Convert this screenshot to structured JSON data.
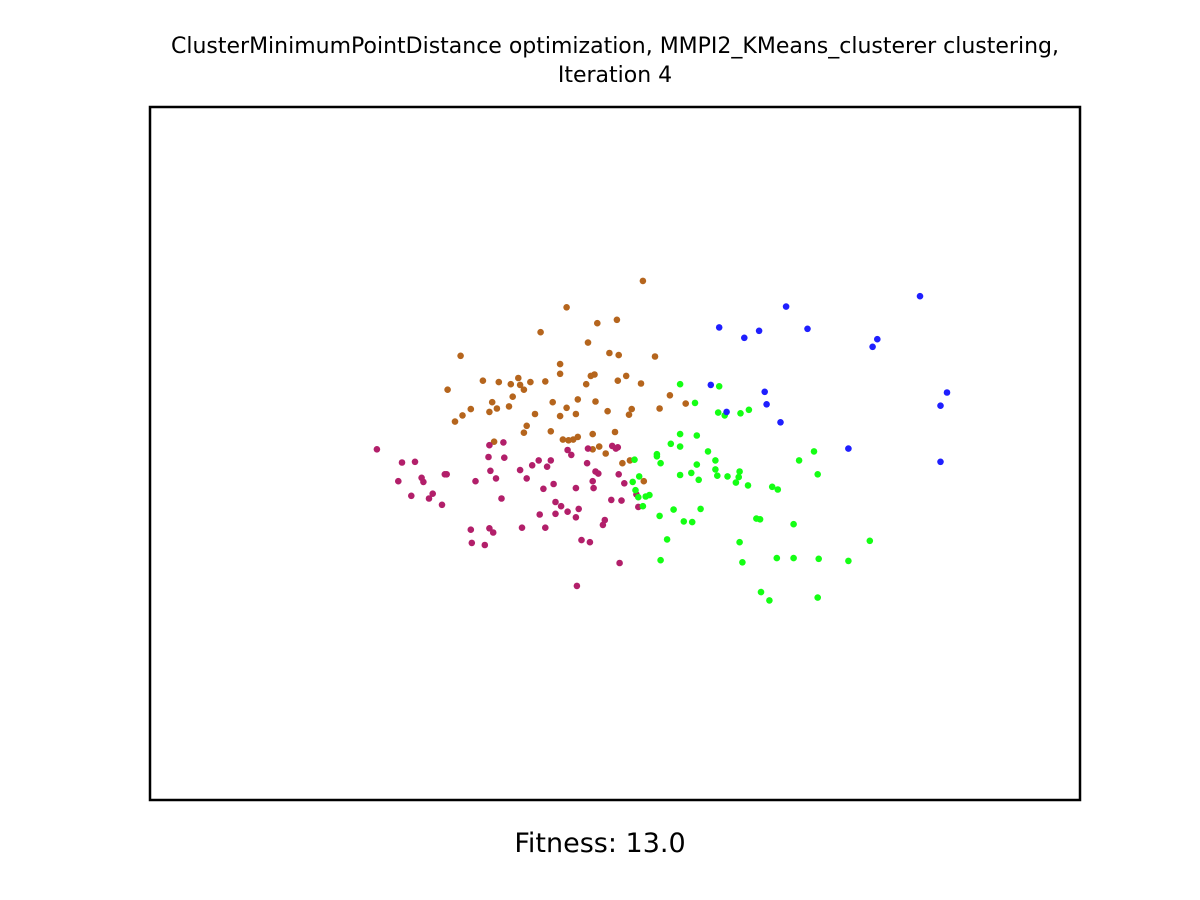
{
  "title_line1": "ClusterMinimumPointDistance optimization, MMPI2_KMeans_clusterer clustering,",
  "title_line2": "Iteration 4",
  "xlabel": "Fitness: 13.0",
  "chart_data": {
    "type": "scatter",
    "title": "ClusterMinimumPointDistance optimization, MMPI2_KMeans_clusterer clustering, Iteration 4",
    "xlabel": "Fitness: 13.0",
    "ylabel": "",
    "axes_ticks": false,
    "grid": false,
    "legend": false,
    "xlim": [
      0,
      1
    ],
    "ylim": [
      0,
      1
    ],
    "series": [
      {
        "color": "#b5651d",
        "points": [
          [
            0.448,
            0.711
          ],
          [
            0.53,
            0.749
          ],
          [
            0.502,
            0.693
          ],
          [
            0.336,
            0.555
          ],
          [
            0.334,
            0.641
          ],
          [
            0.32,
            0.592
          ],
          [
            0.42,
            0.675
          ],
          [
            0.478,
            0.614
          ],
          [
            0.441,
            0.615
          ],
          [
            0.481,
            0.688
          ],
          [
            0.471,
            0.66
          ],
          [
            0.494,
            0.645
          ],
          [
            0.402,
            0.592
          ],
          [
            0.414,
            0.557
          ],
          [
            0.39,
            0.582
          ],
          [
            0.448,
            0.566
          ],
          [
            0.441,
            0.629
          ],
          [
            0.504,
            0.642
          ],
          [
            0.479,
            0.575
          ],
          [
            0.503,
            0.605
          ],
          [
            0.375,
            0.603
          ],
          [
            0.386,
            0.568
          ],
          [
            0.345,
            0.564
          ],
          [
            0.368,
            0.574
          ],
          [
            0.328,
            0.546
          ],
          [
            0.398,
            0.599
          ],
          [
            0.388,
            0.6
          ],
          [
            0.373,
            0.565
          ],
          [
            0.441,
            0.554
          ],
          [
            0.458,
            0.557
          ],
          [
            0.455,
            0.52
          ],
          [
            0.45,
            0.519
          ],
          [
            0.483,
            0.51
          ],
          [
            0.512,
            0.612
          ],
          [
            0.518,
            0.564
          ],
          [
            0.528,
            0.601
          ],
          [
            0.433,
            0.574
          ],
          [
            0.425,
            0.604
          ],
          [
            0.46,
            0.578
          ],
          [
            0.474,
            0.612
          ],
          [
            0.409,
            0.603
          ],
          [
            0.365,
            0.56
          ],
          [
            0.402,
            0.53
          ],
          [
            0.5,
            0.531
          ],
          [
            0.476,
            0.528
          ],
          [
            0.49,
            0.5
          ],
          [
            0.515,
            0.556
          ],
          [
            0.543,
            0.64
          ],
          [
            0.576,
            0.572
          ],
          [
            0.559,
            0.584
          ],
          [
            0.548,
            0.565
          ],
          [
            0.405,
            0.54
          ],
          [
            0.37,
            0.517
          ],
          [
            0.396,
            0.609
          ],
          [
            0.358,
            0.605
          ],
          [
            0.431,
            0.532
          ],
          [
            0.476,
            0.506
          ],
          [
            0.508,
            0.486
          ],
          [
            0.516,
            0.49
          ],
          [
            0.469,
            0.6
          ],
          [
            0.46,
            0.524
          ],
          [
            0.444,
            0.52
          ],
          [
            0.492,
            0.561
          ],
          [
            0.531,
            0.46
          ]
        ]
      },
      {
        "color": "#b21f6a",
        "points": [
          [
            0.244,
            0.506
          ],
          [
            0.285,
            0.488
          ],
          [
            0.294,
            0.459
          ],
          [
            0.319,
            0.47
          ],
          [
            0.314,
            0.426
          ],
          [
            0.35,
            0.46
          ],
          [
            0.381,
            0.494
          ],
          [
            0.38,
            0.516
          ],
          [
            0.405,
            0.464
          ],
          [
            0.366,
            0.475
          ],
          [
            0.365,
            0.512
          ],
          [
            0.398,
            0.476
          ],
          [
            0.411,
            0.483
          ],
          [
            0.427,
            0.481
          ],
          [
            0.418,
            0.49
          ],
          [
            0.431,
            0.49
          ],
          [
            0.449,
            0.505
          ],
          [
            0.47,
            0.486
          ],
          [
            0.453,
            0.498
          ],
          [
            0.477,
            0.45
          ],
          [
            0.479,
            0.474
          ],
          [
            0.489,
            0.404
          ],
          [
            0.476,
            0.46
          ],
          [
            0.461,
            0.42
          ],
          [
            0.434,
            0.456
          ],
          [
            0.419,
            0.412
          ],
          [
            0.425,
            0.393
          ],
          [
            0.4,
            0.393
          ],
          [
            0.378,
            0.435
          ],
          [
            0.369,
            0.386
          ],
          [
            0.36,
            0.368
          ],
          [
            0.346,
            0.371
          ],
          [
            0.365,
            0.392
          ],
          [
            0.345,
            0.39
          ],
          [
            0.304,
            0.442
          ],
          [
            0.3,
            0.435
          ],
          [
            0.317,
            0.47
          ],
          [
            0.281,
            0.439
          ],
          [
            0.271,
            0.487
          ],
          [
            0.267,
            0.46
          ],
          [
            0.292,
            0.465
          ],
          [
            0.364,
            0.495
          ],
          [
            0.372,
            0.464
          ],
          [
            0.436,
            0.43
          ],
          [
            0.436,
            0.413
          ],
          [
            0.442,
            0.424
          ],
          [
            0.449,
            0.416
          ],
          [
            0.458,
            0.408
          ],
          [
            0.464,
            0.375
          ],
          [
            0.487,
            0.397
          ],
          [
            0.473,
            0.372
          ],
          [
            0.507,
            0.432
          ],
          [
            0.496,
            0.433
          ],
          [
            0.51,
            0.457
          ],
          [
            0.523,
            0.441
          ],
          [
            0.525,
            0.423
          ],
          [
            0.504,
            0.47
          ],
          [
            0.471,
            0.507
          ],
          [
            0.482,
            0.471
          ],
          [
            0.503,
            0.509
          ],
          [
            0.497,
            0.511
          ],
          [
            0.501,
            0.507
          ],
          [
            0.458,
            0.45
          ],
          [
            0.505,
            0.342
          ],
          [
            0.459,
            0.309
          ],
          [
            0.423,
            0.449
          ]
        ]
      },
      {
        "color": "#14ff14",
        "points": [
          [
            0.522,
            0.447
          ],
          [
            0.519,
            0.459
          ],
          [
            0.526,
            0.467
          ],
          [
            0.521,
            0.491
          ],
          [
            0.525,
            0.437
          ],
          [
            0.53,
            0.424
          ],
          [
            0.533,
            0.438
          ],
          [
            0.537,
            0.44
          ],
          [
            0.548,
            0.41
          ],
          [
            0.545,
            0.499
          ],
          [
            0.549,
            0.486
          ],
          [
            0.56,
            0.514
          ],
          [
            0.57,
            0.528
          ],
          [
            0.57,
            0.51
          ],
          [
            0.57,
            0.469
          ],
          [
            0.556,
            0.376
          ],
          [
            0.549,
            0.346
          ],
          [
            0.563,
            0.419
          ],
          [
            0.574,
            0.402
          ],
          [
            0.582,
            0.472
          ],
          [
            0.59,
            0.462
          ],
          [
            0.588,
            0.484
          ],
          [
            0.583,
            0.401
          ],
          [
            0.592,
            0.42
          ],
          [
            0.588,
            0.526
          ],
          [
            0.586,
            0.573
          ],
          [
            0.611,
            0.559
          ],
          [
            0.61,
            0.468
          ],
          [
            0.608,
            0.49
          ],
          [
            0.608,
            0.477
          ],
          [
            0.621,
            0.467
          ],
          [
            0.633,
            0.466
          ],
          [
            0.63,
            0.458
          ],
          [
            0.634,
            0.474
          ],
          [
            0.643,
            0.454
          ],
          [
            0.656,
            0.405
          ],
          [
            0.669,
            0.452
          ],
          [
            0.652,
            0.406
          ],
          [
            0.634,
            0.372
          ],
          [
            0.637,
            0.343
          ],
          [
            0.674,
            0.349
          ],
          [
            0.692,
            0.349
          ],
          [
            0.692,
            0.398
          ],
          [
            0.675,
            0.448
          ],
          [
            0.698,
            0.49
          ],
          [
            0.718,
            0.47
          ],
          [
            0.714,
            0.503
          ],
          [
            0.719,
            0.348
          ],
          [
            0.751,
            0.345
          ],
          [
            0.774,
            0.374
          ],
          [
            0.718,
            0.292
          ],
          [
            0.666,
            0.288
          ],
          [
            0.657,
            0.3
          ],
          [
            0.635,
            0.558
          ],
          [
            0.612,
            0.597
          ],
          [
            0.644,
            0.563
          ],
          [
            0.57,
            0.6
          ],
          [
            0.545,
            0.496
          ],
          [
            0.618,
            0.555
          ],
          [
            0.6,
            0.503
          ]
        ]
      },
      {
        "color": "#1f1fff",
        "points": [
          [
            0.612,
            0.682
          ],
          [
            0.639,
            0.667
          ],
          [
            0.655,
            0.677
          ],
          [
            0.684,
            0.712
          ],
          [
            0.707,
            0.68
          ],
          [
            0.777,
            0.654
          ],
          [
            0.782,
            0.665
          ],
          [
            0.828,
            0.727
          ],
          [
            0.857,
            0.588
          ],
          [
            0.85,
            0.569
          ],
          [
            0.85,
            0.488
          ],
          [
            0.751,
            0.507
          ],
          [
            0.603,
            0.599
          ],
          [
            0.661,
            0.589
          ],
          [
            0.62,
            0.56
          ],
          [
            0.663,
            0.571
          ],
          [
            0.678,
            0.545
          ]
        ]
      }
    ]
  }
}
